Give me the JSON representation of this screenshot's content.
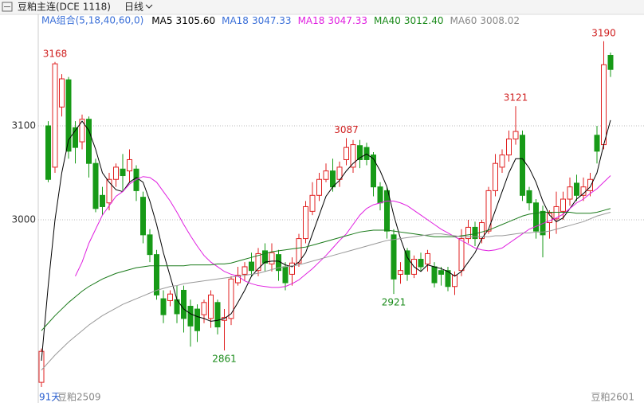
{
  "header": {
    "symbol": "豆粕主连(DCE 1118)",
    "period": "日线"
  },
  "chart_data": {
    "type": "candlestick",
    "indicator": "MA组合(5,18,40,60,0)",
    "legend": [
      {
        "name": "MA5",
        "value_label": "3105.60",
        "color": "#000000"
      },
      {
        "name": "MA18",
        "value_label": "3047.33",
        "color": "#3a6fd8"
      },
      {
        "name": "MA18",
        "value_label": "3047.33",
        "color": "#e020e0"
      },
      {
        "name": "MA40",
        "value_label": "3012.40",
        "color": "#1a8a1a"
      },
      {
        "name": "MA60",
        "value_label": "3008.02",
        "color": "#888888"
      }
    ],
    "open": [
      2827,
      3100,
      3056,
      3120,
      3149,
      3098,
      3083,
      3107,
      3060,
      3026,
      3018,
      3043,
      3054,
      3052,
      3054,
      3024,
      2984,
      2963,
      2916,
      2914,
      2915,
      2925,
      2908,
      2905,
      2899,
      2895,
      2912,
      2893,
      2895,
      2933,
      2942,
      2955,
      2946,
      2967,
      2953,
      2963,
      2950,
      2942,
      2954,
      2980,
      3009,
      3026,
      3043,
      3052,
      3043,
      3064,
      3056,
      3079,
      3077,
      3069,
      3035,
      3031,
      2984,
      2942,
      2967,
      2942,
      2958,
      2953,
      2950,
      2946,
      2946,
      2929,
      2946,
      2980,
      2992,
      2980,
      2988,
      3031,
      3056,
      3069,
      3086,
      3090,
      3031,
      3018,
      3009,
      2997,
      3001,
      3009,
      3022,
      3039,
      3026,
      3031,
      3090,
      3080,
      3175
    ],
    "high": [
      2863,
      3105,
      3168,
      3155,
      3152,
      3105,
      3112,
      3110,
      3065,
      3035,
      3050,
      3060,
      3070,
      3075,
      3058,
      3030,
      2990,
      2968,
      2925,
      2925,
      2930,
      2930,
      2915,
      2910,
      2915,
      2925,
      2915,
      2905,
      2940,
      2950,
      2955,
      2965,
      2970,
      2975,
      2975,
      2968,
      2955,
      2960,
      2985,
      3020,
      3040,
      3050,
      3060,
      3065,
      3062,
      3087,
      3085,
      3085,
      3082,
      3072,
      3040,
      3035,
      2990,
      2955,
      2970,
      2962,
      2965,
      2968,
      2955,
      2950,
      2950,
      2945,
      2990,
      3000,
      2998,
      3000,
      3035,
      3070,
      3075,
      3095,
      3121,
      3095,
      3035,
      3022,
      3015,
      3010,
      3030,
      3030,
      3045,
      3048,
      3045,
      3050,
      3100,
      3190,
      3178
    ],
    "low": [
      2822,
      3040,
      3050,
      3110,
      3065,
      3060,
      3075,
      3045,
      3008,
      3005,
      3010,
      3035,
      3030,
      3040,
      3020,
      2975,
      2955,
      2915,
      2890,
      2908,
      2890,
      2880,
      2865,
      2870,
      2890,
      2885,
      2878,
      2861,
      2888,
      2930,
      2935,
      2940,
      2940,
      2945,
      2945,
      2935,
      2925,
      2930,
      2950,
      2975,
      3005,
      3020,
      3040,
      3030,
      3035,
      3058,
      3050,
      3055,
      3058,
      3025,
      3010,
      2980,
      2921,
      2932,
      2935,
      2938,
      2945,
      2945,
      2928,
      2930,
      2924,
      2920,
      2940,
      2975,
      2972,
      2975,
      2985,
      3025,
      3050,
      3062,
      3080,
      3020,
      3010,
      2980,
      2960,
      2980,
      2985,
      3000,
      3015,
      3020,
      3020,
      3025,
      3060,
      3075,
      3152
    ],
    "close": [
      2860,
      3043,
      3166,
      3150,
      3073,
      3077,
      3107,
      3060,
      3012,
      3014,
      3043,
      3056,
      3047,
      3064,
      3031,
      2984,
      2963,
      2920,
      2899,
      2921,
      2900,
      2895,
      2887,
      2882,
      2912,
      2920,
      2886,
      2896,
      2937,
      2941,
      2950,
      2946,
      2964,
      2954,
      2965,
      2946,
      2933,
      2954,
      2980,
      3014,
      3026,
      3043,
      3052,
      3035,
      3056,
      3077,
      3080,
      3064,
      3064,
      3035,
      3018,
      2988,
      2937,
      2946,
      2942,
      2958,
      2950,
      2964,
      2933,
      2942,
      2929,
      2941,
      2980,
      2992,
      2980,
      2997,
      3031,
      3060,
      3069,
      3086,
      3094,
      3026,
      3018,
      2988,
      2984,
      3007,
      3014,
      3022,
      3035,
      3026,
      3035,
      3043,
      3073,
      3165,
      3160
    ],
    "up_color": "#e02020",
    "down_color": "#179a17",
    "ma_lines": [
      {
        "color": "#000000",
        "values": [
          2850,
          2930,
          3000,
          3050,
          3085,
          3095,
          3105,
          3095,
          3075,
          3050,
          3040,
          3032,
          3030,
          3040,
          3045,
          3040,
          3020,
          2995,
          2965,
          2940,
          2915,
          2905,
          2900,
          2897,
          2895,
          2892,
          2893,
          2895,
          2900,
          2912,
          2925,
          2940,
          2948,
          2955,
          2956,
          2956,
          2952,
          2950,
          2955,
          2965,
          2985,
          3005,
          3025,
          3035,
          3042,
          3052,
          3060,
          3066,
          3070,
          3065,
          3052,
          3035,
          3005,
          2980,
          2960,
          2950,
          2945,
          2952,
          2950,
          2948,
          2945,
          2940,
          2945,
          2955,
          2965,
          2980,
          2990,
          3010,
          3030,
          3050,
          3065,
          3065,
          3055,
          3040,
          3020,
          3005,
          2998,
          3002,
          3012,
          3022,
          3028,
          3035,
          3050,
          3080,
          3106
        ]
      },
      {
        "color": "#e020e0",
        "values": [
          null,
          null,
          null,
          null,
          null,
          2940,
          2955,
          2975,
          2990,
          3005,
          3015,
          3025,
          3030,
          3038,
          3043,
          3046,
          3045,
          3040,
          3030,
          3020,
          3008,
          2995,
          2983,
          2972,
          2962,
          2955,
          2950,
          2945,
          2942,
          2940,
          2935,
          2932,
          2930,
          2929,
          2928,
          2928,
          2929,
          2932,
          2936,
          2942,
          2948,
          2955,
          2962,
          2970,
          2978,
          2985,
          2995,
          3005,
          3012,
          3016,
          3018,
          3020,
          3020,
          3018,
          3015,
          3010,
          3005,
          3000,
          2995,
          2990,
          2986,
          2982,
          2978,
          2974,
          2970,
          2968,
          2967,
          2968,
          2970,
          2975,
          2980,
          2985,
          2990,
          2993,
          2996,
          2999,
          3002,
          3006,
          3012,
          3018,
          3022,
          3028,
          3033,
          3040,
          3047
        ]
      },
      {
        "color": "#1a7a1a",
        "values": [
          2882,
          2890,
          2898,
          2905,
          2912,
          2918,
          2924,
          2929,
          2933,
          2937,
          2940,
          2943,
          2945,
          2947,
          2949,
          2950,
          2951,
          2951,
          2951,
          2951,
          2951,
          2951,
          2952,
          2952,
          2952,
          2952,
          2953,
          2953,
          2954,
          2956,
          2958,
          2960,
          2962,
          2964,
          2966,
          2967,
          2968,
          2969,
          2970,
          2971,
          2973,
          2975,
          2977,
          2979,
          2981,
          2983,
          2985,
          2987,
          2988,
          2989,
          2989,
          2989,
          2988,
          2987,
          2986,
          2985,
          2984,
          2983,
          2982,
          2982,
          2982,
          2982,
          2983,
          2984,
          2985,
          2987,
          2989,
          2992,
          2995,
          2998,
          3001,
          3004,
          3006,
          3007,
          3008,
          3008,
          3008,
          3008,
          3008,
          3007,
          3007,
          3007,
          3008,
          3010,
          3012
        ]
      },
      {
        "color": "#999999",
        "values": [
          2840,
          2848,
          2856,
          2863,
          2870,
          2876,
          2882,
          2888,
          2893,
          2898,
          2902,
          2906,
          2910,
          2913,
          2916,
          2919,
          2922,
          2925,
          2927,
          2929,
          2930,
          2932,
          2933,
          2934,
          2935,
          2936,
          2937,
          2938,
          2939,
          2940,
          2941,
          2942,
          2943,
          2945,
          2947,
          2949,
          2950,
          2951,
          2952,
          2954,
          2956,
          2958,
          2960,
          2962,
          2964,
          2966,
          2968,
          2970,
          2972,
          2974,
          2976,
          2978,
          2979,
          2980,
          2981,
          2982,
          2983,
          2984,
          2985,
          2985,
          2984,
          2983,
          2982,
          2982,
          2982,
          2982,
          2982,
          2983,
          2983,
          2984,
          2985,
          2986,
          2986,
          2987,
          2987,
          2988,
          2990,
          2992,
          2994,
          2996,
          2998,
          3001,
          3004,
          3006,
          3008
        ]
      }
    ],
    "annotations": [
      3168,
      2861,
      3087,
      2921,
      3121,
      3190
    ],
    "ylim": [
      2818.6,
      3203.4
    ],
    "yticks": [
      3000,
      3100
    ],
    "grid": true,
    "x_labels": [
      "91天",
      "豆粕2509",
      "豆粕2601"
    ]
  }
}
